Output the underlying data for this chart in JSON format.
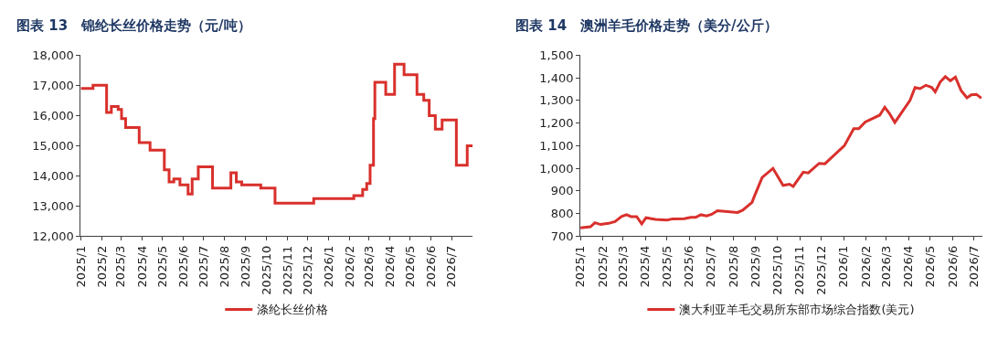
{
  "chart_data": [
    {
      "type": "step",
      "title": "图表 13　锦纶长丝价格走势（元/吨）",
      "legend": "bottom",
      "line_style": "solid",
      "marker": "none",
      "x": [
        "2025-01-01",
        "2025-01-19",
        "2025-02-08",
        "2025-02-15",
        "2025-02-25",
        "2025-03-02",
        "2025-03-08",
        "2025-03-28",
        "2025-04-13",
        "2025-05-04",
        "2025-05-11",
        "2025-05-18",
        "2025-05-27",
        "2025-06-08",
        "2025-06-14",
        "2025-06-23",
        "2025-07-14",
        "2025-08-10",
        "2025-08-18",
        "2025-08-26",
        "2025-09-23",
        "2025-10-14",
        "2025-12-10",
        "2026-02-07",
        "2026-02-20",
        "2026-02-26",
        "2026-03-03",
        "2026-03-08",
        "2026-03-10",
        "2026-03-26",
        "2026-04-08",
        "2026-04-22",
        "2026-05-11",
        "2026-05-21",
        "2026-05-29",
        "2026-06-07",
        "2026-06-17",
        "2026-07-08",
        "2026-07-24",
        "2026-08-01"
      ],
      "series": [
        {
          "name": "涤纶长丝价格",
          "color": "#d9302c",
          "values": [
            16900,
            17000,
            16100,
            16300,
            16200,
            15900,
            15600,
            15100,
            14850,
            14200,
            13800,
            13900,
            13700,
            13400,
            13900,
            14300,
            13600,
            14100,
            13800,
            13700,
            13600,
            13100,
            13250,
            13350,
            13550,
            13750,
            14350,
            15900,
            17100,
            16700,
            17700,
            17350,
            16700,
            16500,
            16000,
            15550,
            15850,
            14350,
            15000,
            15000
          ]
        }
      ],
      "xlim": [
        "2025-01-01",
        "2026-08-01"
      ],
      "xticks": [
        {
          "value": "2025-01",
          "label": "2025/1"
        },
        {
          "value": "2025-02",
          "label": "2025/2"
        },
        {
          "value": "2025-03",
          "label": "2025/3"
        },
        {
          "value": "2025-04",
          "label": "2025/4"
        },
        {
          "value": "2025-05",
          "label": "2025/5"
        },
        {
          "value": "2025-06",
          "label": "2025/6"
        },
        {
          "value": "2025-07",
          "label": "2025/7"
        },
        {
          "value": "2025-08",
          "label": "2025/8"
        },
        {
          "value": "2025-09",
          "label": "2025/9"
        },
        {
          "value": "2025-10",
          "label": "2025/10"
        },
        {
          "value": "2025-11",
          "label": "2025/11"
        },
        {
          "value": "2025-12",
          "label": "2025/12"
        },
        {
          "value": "2026-01",
          "label": "2026/1"
        },
        {
          "value": "2026-02",
          "label": "2026/2"
        },
        {
          "value": "2026-03",
          "label": "2026/3"
        },
        {
          "value": "2026-04",
          "label": "2026/4"
        },
        {
          "value": "2026-05",
          "label": "2026/5"
        },
        {
          "value": "2026-06",
          "label": "2026/6"
        },
        {
          "value": "2026-07",
          "label": "2026/7"
        }
      ],
      "ylim": [
        12000,
        18000
      ],
      "yticks": [
        {
          "value": 12000,
          "label": "12,000"
        },
        {
          "value": 13000,
          "label": "13,000"
        },
        {
          "value": 14000,
          "label": "14,000"
        },
        {
          "value": 15000,
          "label": "15,000"
        },
        {
          "value": 16000,
          "label": "16,000"
        },
        {
          "value": 17000,
          "label": "17,000"
        },
        {
          "value": 18000,
          "label": "18,000"
        }
      ]
    },
    {
      "type": "line",
      "title": "图表 14　澳洲羊毛价格走势（美分/公斤）",
      "legend": "bottom",
      "line_style": "solid",
      "marker": "none",
      "x": [
        "2025-01-01",
        "2025-01-15",
        "2025-01-21",
        "2025-01-29",
        "2025-02-09",
        "2025-02-18",
        "2025-02-27",
        "2025-03-06",
        "2025-03-12",
        "2025-03-20",
        "2025-03-27",
        "2025-04-02",
        "2025-04-15",
        "2025-05-01",
        "2025-05-09",
        "2025-05-25",
        "2025-06-03",
        "2025-06-10",
        "2025-06-17",
        "2025-06-25",
        "2025-07-02",
        "2025-07-10",
        "2025-08-07",
        "2025-08-14",
        "2025-08-27",
        "2025-08-30",
        "2025-09-10",
        "2025-09-25",
        "2025-10-09",
        "2025-10-18",
        "2025-10-23",
        "2025-11-06",
        "2025-11-13",
        "2025-11-28",
        "2025-12-06",
        "2026-01-02",
        "2026-01-15",
        "2026-01-22",
        "2026-01-31",
        "2026-02-20",
        "2026-02-27",
        "2026-03-05",
        "2026-03-13",
        "2026-04-03",
        "2026-04-10",
        "2026-04-17",
        "2026-04-25",
        "2026-05-03",
        "2026-05-08",
        "2026-05-15",
        "2026-05-22",
        "2026-05-29",
        "2026-06-05",
        "2026-06-13",
        "2026-06-21",
        "2026-06-27",
        "2026-07-04",
        "2026-07-11"
      ],
      "series": [
        {
          "name": "澳大利亚羊毛交易所东部市场综合指数(美元)",
          "color": "#d9302c",
          "values": [
            737,
            742,
            760,
            752,
            757,
            765,
            787,
            795,
            787,
            787,
            755,
            782,
            775,
            772,
            777,
            778,
            784,
            784,
            795,
            790,
            797,
            813,
            805,
            815,
            850,
            875,
            960,
            1000,
            925,
            930,
            920,
            983,
            980,
            1022,
            1020,
            1100,
            1175,
            1175,
            1205,
            1235,
            1270,
            1245,
            1203,
            1300,
            1357,
            1352,
            1367,
            1358,
            1338,
            1382,
            1405,
            1387,
            1403,
            1343,
            1312,
            1325,
            1327,
            1310
          ]
        }
      ],
      "xlim": [
        "2025-01-01",
        "2026-07-12"
      ],
      "xticks": [
        {
          "value": "2025-01",
          "label": "2025/1"
        },
        {
          "value": "2025-02",
          "label": "2025/2"
        },
        {
          "value": "2025-03",
          "label": "2025/3"
        },
        {
          "value": "2025-04",
          "label": "2025/4"
        },
        {
          "value": "2025-05",
          "label": "2025/5"
        },
        {
          "value": "2025-06",
          "label": "2025/6"
        },
        {
          "value": "2025-07",
          "label": "2025/7"
        },
        {
          "value": "2025-08",
          "label": "2025/8"
        },
        {
          "value": "2025-09",
          "label": "2025/9"
        },
        {
          "value": "2025-10",
          "label": "2025/10"
        },
        {
          "value": "2025-11",
          "label": "2025/11"
        },
        {
          "value": "2025-12",
          "label": "2025/12"
        },
        {
          "value": "2026-01",
          "label": "2026/1"
        },
        {
          "value": "2026-02",
          "label": "2026/2"
        },
        {
          "value": "2026-03",
          "label": "2026/3"
        },
        {
          "value": "2026-04",
          "label": "2026/4"
        },
        {
          "value": "2026-05",
          "label": "2026/5"
        },
        {
          "value": "2026-06",
          "label": "2026/6"
        },
        {
          "value": "2026-07",
          "label": "2026/7"
        }
      ],
      "ylim": [
        700,
        1500
      ],
      "yticks": [
        {
          "value": 700,
          "label": "700"
        },
        {
          "value": 800,
          "label": "800"
        },
        {
          "value": 900,
          "label": "900"
        },
        {
          "value": 1000,
          "label": "1,000"
        },
        {
          "value": 1100,
          "label": "1,100"
        },
        {
          "value": 1200,
          "label": "1,200"
        },
        {
          "value": 1300,
          "label": "1,300"
        },
        {
          "value": 1400,
          "label": "1,400"
        },
        {
          "value": 1500,
          "label": "1,500"
        }
      ]
    }
  ]
}
